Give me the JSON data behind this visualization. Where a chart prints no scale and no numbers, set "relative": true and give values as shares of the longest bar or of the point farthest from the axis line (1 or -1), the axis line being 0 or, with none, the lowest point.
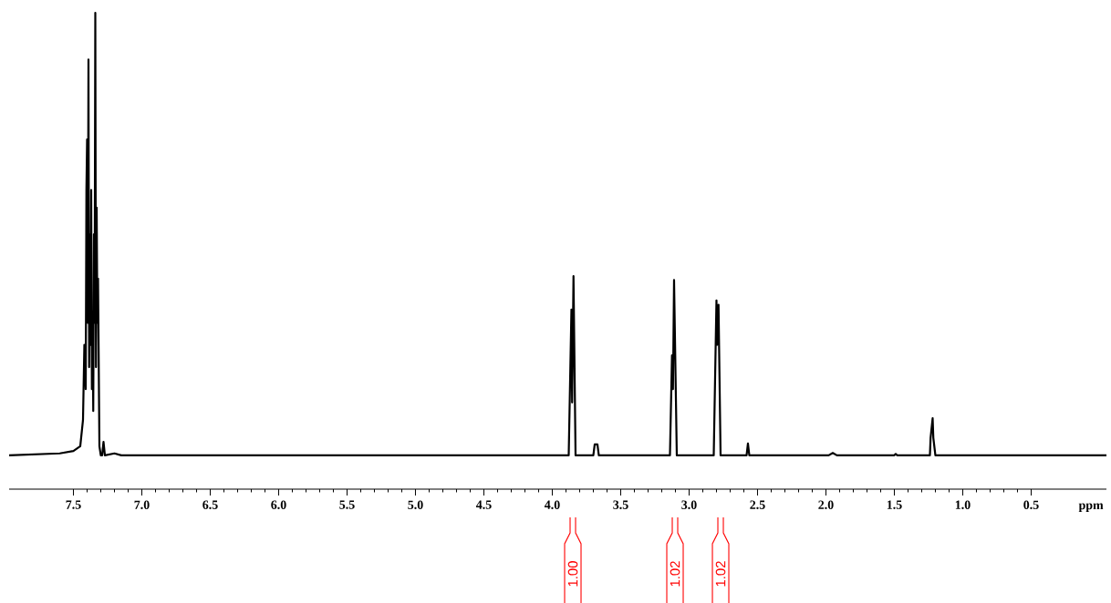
{
  "chart_data": {
    "type": "line",
    "relative": true,
    "color": "#000000",
    "xlabel": "ppm",
    "xlim": [
      7.97,
      -0.05
    ],
    "xticks": [
      7.5,
      {
        "value": 7.0,
        "label": "7.0"
      },
      6.5,
      {
        "value": 6.0,
        "label": "6.0"
      },
      5.5,
      {
        "value": 5.0,
        "label": "5.0"
      },
      4.5,
      {
        "value": 4.0,
        "label": "4.0"
      },
      3.5,
      {
        "value": 3.0,
        "label": "3.0"
      },
      2.5,
      {
        "value": 2.0,
        "label": "2.0"
      },
      1.5,
      {
        "value": 1.0,
        "label": "1.0"
      },
      0.5
    ],
    "x": [
      7.97,
      7.6,
      7.5,
      7.45,
      7.43,
      7.42,
      7.41,
      7.405,
      7.4,
      7.395,
      7.39,
      7.385,
      7.38,
      7.375,
      7.37,
      7.365,
      7.36,
      7.355,
      7.35,
      7.345,
      7.34,
      7.335,
      7.33,
      7.325,
      7.32,
      7.31,
      7.3,
      7.29,
      7.28,
      7.27,
      7.2,
      7.15,
      4.0,
      3.88,
      3.86,
      3.855,
      3.845,
      3.83,
      3.7,
      3.69,
      3.67,
      3.66,
      3.14,
      3.125,
      3.118,
      3.11,
      3.1,
      3.09,
      2.82,
      2.8,
      2.795,
      2.785,
      2.77,
      2.58,
      2.57,
      2.56,
      1.98,
      1.95,
      1.92,
      1.5,
      1.49,
      1.48,
      1.24,
      1.235,
      1.22,
      1.215,
      1.2,
      -0.05
    ],
    "values": [
      0.071,
      0.075,
      0.08,
      0.09,
      0.145,
      0.303,
      0.21,
      0.628,
      0.734,
      0.349,
      0.902,
      0.256,
      0.535,
      0.303,
      0.628,
      0.21,
      0.349,
      0.164,
      0.535,
      0.349,
      1.0,
      0.256,
      0.591,
      0.349,
      0.442,
      0.09,
      0.071,
      0.071,
      0.099,
      0.071,
      0.075,
      0.071,
      0.071,
      0.071,
      0.377,
      0.182,
      0.447,
      0.071,
      0.071,
      0.094,
      0.094,
      0.071,
      0.071,
      0.281,
      0.21,
      0.439,
      0.256,
      0.071,
      0.071,
      0.396,
      0.303,
      0.387,
      0.071,
      0.071,
      0.096,
      0.071,
      0.071,
      0.076,
      0.071,
      0.071,
      0.074,
      0.071,
      0.071,
      0.108,
      0.149,
      0.108,
      0.071,
      0.071
    ],
    "annotations": [
      "1.00",
      "1.02",
      "1.02"
    ]
  }
}
